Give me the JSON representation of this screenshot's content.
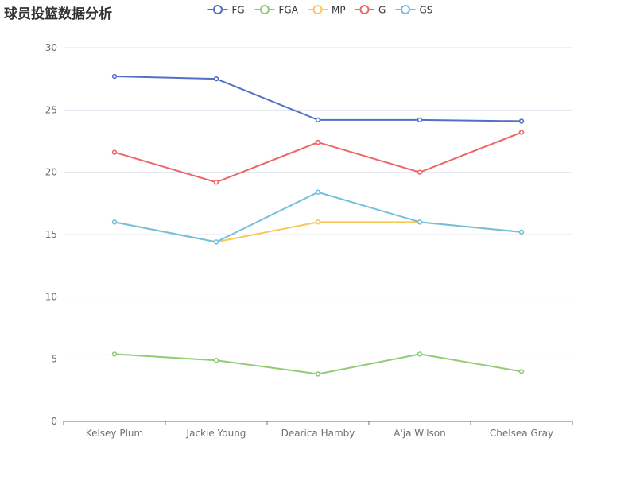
{
  "chart_data": {
    "type": "line",
    "title": "球员投篮数据分析",
    "xlabel": "",
    "ylabel": "",
    "categories": [
      "Kelsey Plum",
      "Jackie Young",
      "Dearica Hamby",
      "A'ja Wilson",
      "Chelsea Gray"
    ],
    "ylim": [
      0,
      30
    ],
    "yticks": [
      0,
      5,
      10,
      15,
      20,
      25,
      30
    ],
    "grid": true,
    "legend_position": "top-center",
    "series": [
      {
        "name": "FG",
        "color": "#5470c6",
        "values": [
          27.7,
          27.5,
          24.2,
          24.2,
          24.1
        ]
      },
      {
        "name": "FGA",
        "color": "#91cc75",
        "values": [
          5.4,
          4.9,
          3.8,
          5.4,
          4.0
        ]
      },
      {
        "name": "MP",
        "color": "#fac858",
        "values": [
          16.0,
          14.4,
          16.0,
          16.0,
          15.2
        ]
      },
      {
        "name": "G",
        "color": "#ee6666",
        "values": [
          21.6,
          19.2,
          22.4,
          20.0,
          23.2
        ]
      },
      {
        "name": "GS",
        "color": "#73c0de",
        "values": [
          16.0,
          14.4,
          18.4,
          16.0,
          15.2
        ]
      }
    ]
  }
}
